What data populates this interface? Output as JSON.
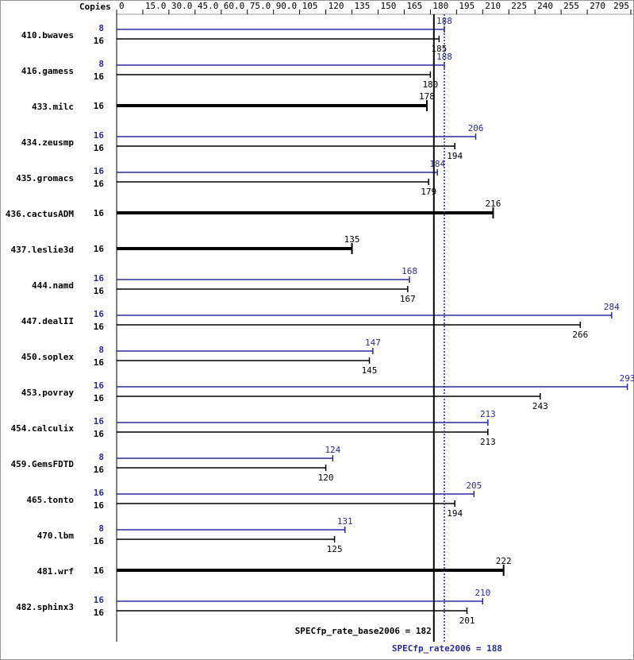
{
  "chart_data": {
    "type": "spec-bar",
    "copies_header": "Copies",
    "categories": [
      "410.bwaves",
      "416.gamess",
      "433.milc",
      "434.zeusmp",
      "435.gromacs",
      "436.cactusADM",
      "437.leslie3d",
      "444.namd",
      "447.dealII",
      "450.soplex",
      "453.povray",
      "454.calculix",
      "459.GemsFDTD",
      "465.tonto",
      "470.lbm",
      "481.wrf",
      "482.sphinx3"
    ],
    "series": [
      {
        "name": "peak",
        "color": "#2b2b9b",
        "copies": [
          8,
          8,
          null,
          16,
          16,
          null,
          null,
          16,
          16,
          8,
          16,
          16,
          8,
          16,
          8,
          null,
          16
        ],
        "values": [
          188,
          188,
          null,
          206,
          184,
          null,
          null,
          168,
          284,
          147,
          293,
          213,
          124,
          205,
          131,
          null,
          210
        ]
      },
      {
        "name": "base",
        "color": "#000000",
        "copies": [
          16,
          16,
          16,
          16,
          16,
          16,
          16,
          16,
          16,
          16,
          16,
          16,
          16,
          16,
          16,
          16,
          16
        ],
        "values": [
          185,
          180,
          178,
          194,
          179,
          216,
          135,
          167,
          266,
          145,
          243,
          213,
          120,
          194,
          125,
          222,
          201
        ]
      }
    ],
    "summary": [
      {
        "label": "SPECfp_rate_base2006 = 182",
        "value": 182,
        "color": "#000000"
      },
      {
        "label": "SPECfp_rate2006 = 188",
        "value": 188,
        "color": "#2b2b9b"
      }
    ],
    "xlim": [
      0,
      295
    ],
    "xticks": [
      0,
      {
        "value": 15,
        "label": "15.0"
      },
      {
        "value": 30,
        "label": "30.0"
      },
      {
        "value": 45,
        "label": "45.0"
      },
      {
        "value": 60,
        "label": "60.0"
      },
      {
        "value": 75,
        "label": "75.0"
      },
      {
        "value": 90,
        "label": "90.0"
      },
      105,
      120,
      135,
      150,
      165,
      180,
      195,
      210,
      225,
      240,
      255,
      270,
      295
    ]
  }
}
